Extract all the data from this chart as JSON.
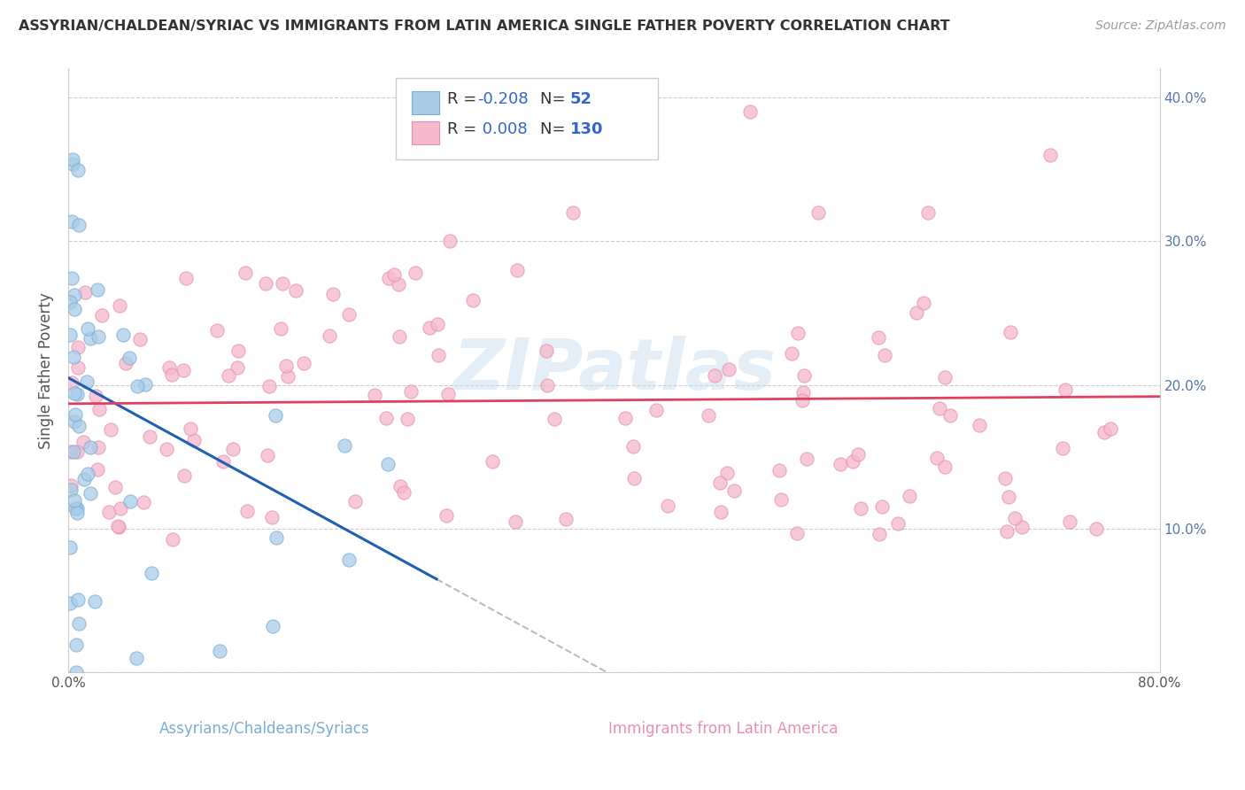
{
  "title": "ASSYRIAN/CHALDEAN/SYRIAC VS IMMIGRANTS FROM LATIN AMERICA SINGLE FATHER POVERTY CORRELATION CHART",
  "source": "Source: ZipAtlas.com",
  "ylabel": "Single Father Poverty",
  "xlabel_blue": "Assyrians/Chaldeans/Syriacs",
  "xlabel_pink": "Immigrants from Latin America",
  "xlim": [
    0,
    0.8
  ],
  "ylim": [
    0,
    0.42
  ],
  "R_blue": -0.208,
  "N_blue": 52,
  "R_pink": 0.008,
  "N_pink": 130,
  "blue_color": "#a8cce8",
  "pink_color": "#f5b8cc",
  "blue_edge": "#7aadd4",
  "pink_edge": "#e890ae",
  "blue_line_color": "#2060b0",
  "pink_line_color": "#e04060",
  "dash_color": "#bbbbbb",
  "watermark_color": "#c8dff0",
  "blue_line_start_y": 0.205,
  "blue_line_end_x": 0.27,
  "blue_line_end_y": 0.065,
  "pink_line_y": 0.187,
  "seed_blue": 7,
  "seed_pink": 12
}
